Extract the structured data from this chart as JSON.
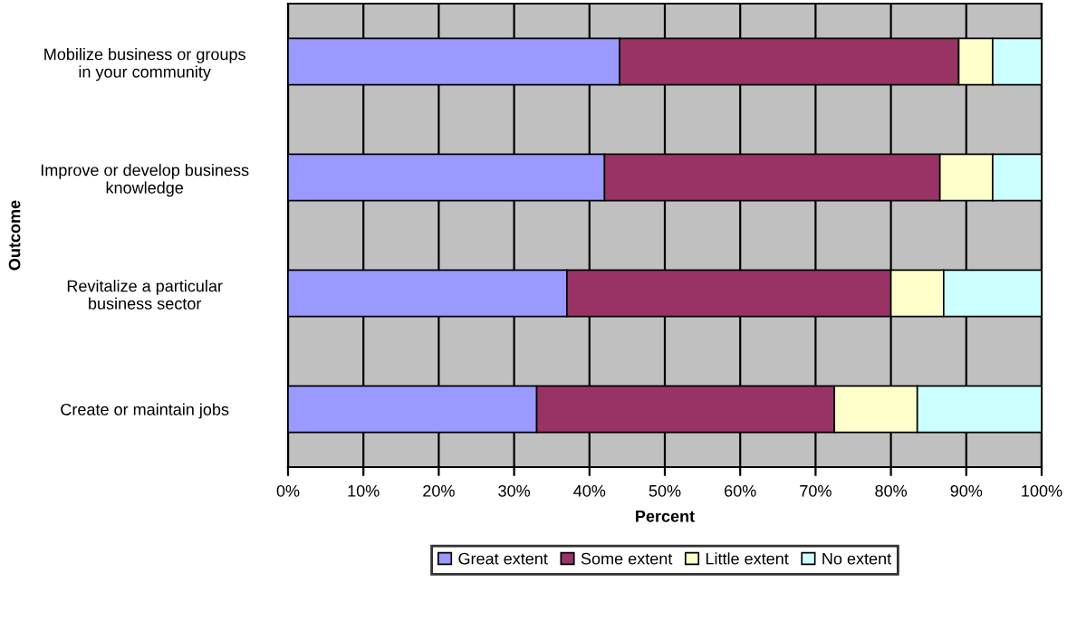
{
  "chart_data": {
    "type": "bar",
    "orientation": "horizontal",
    "stacked": true,
    "xlabel": "Percent",
    "ylabel": "Outcome",
    "categories": [
      "Mobilize business or groups\nin your community",
      "Improve or develop business\nknowledge",
      "Revitalize a particular\nbusiness sector",
      "Create or maintain jobs"
    ],
    "series": [
      {
        "name": "Great extent",
        "color": "#9999ff",
        "values": [
          44,
          42,
          37,
          33
        ]
      },
      {
        "name": "Some extent",
        "color": "#993366",
        "values": [
          45,
          44.5,
          43,
          39.5
        ]
      },
      {
        "name": "Little extent",
        "color": "#ffffcc",
        "values": [
          4.5,
          7,
          7,
          11
        ]
      },
      {
        "name": "No extent",
        "color": "#ccffff",
        "values": [
          6.5,
          6.5,
          13,
          16.5
        ]
      }
    ],
    "xlim": [
      0,
      100
    ],
    "xticks": [
      {
        "value": 0,
        "label": "0%"
      },
      {
        "value": 10,
        "label": "10%"
      },
      {
        "value": 20,
        "label": "20%"
      },
      {
        "value": 30,
        "label": "30%"
      },
      {
        "value": 40,
        "label": "40%"
      },
      {
        "value": 50,
        "label": "50%"
      },
      {
        "value": 60,
        "label": "60%"
      },
      {
        "value": 70,
        "label": "70%"
      },
      {
        "value": 80,
        "label": "80%"
      },
      {
        "value": 90,
        "label": "90%"
      },
      {
        "value": 100,
        "label": "100%"
      }
    ],
    "grid": "x",
    "legend": "bottom"
  }
}
